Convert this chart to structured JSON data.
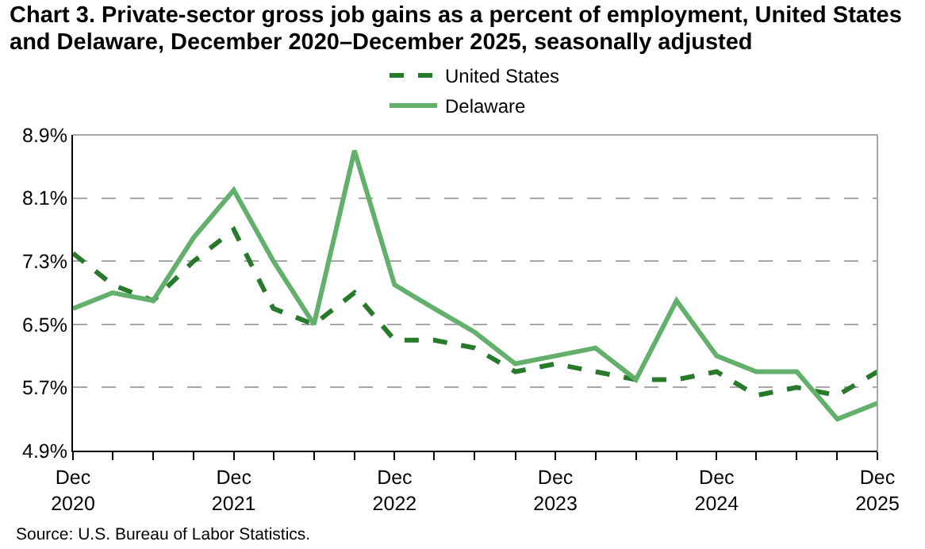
{
  "chart_data": {
    "type": "line",
    "title": "Chart 3. Private-sector gross job gains as a percent of employment, United States and Delaware, December 2020–December 2025, seasonally adjusted",
    "x": [
      "2020-12",
      "2021-03",
      "2021-06",
      "2021-09",
      "2021-12",
      "2022-03",
      "2022-06",
      "2022-09",
      "2022-12",
      "2023-03",
      "2023-06",
      "2023-09",
      "2023-12",
      "2024-03",
      "2024-06",
      "2024-09",
      "2024-12",
      "2025-03",
      "2025-06",
      "2025-09",
      "2025-12"
    ],
    "series": [
      {
        "name": "United States",
        "color": "#267a2a",
        "line_style": "dashed",
        "values": [
          7.4,
          7.0,
          6.8,
          7.3,
          7.7,
          6.7,
          6.5,
          6.9,
          6.3,
          6.3,
          6.2,
          5.9,
          6.0,
          5.9,
          5.8,
          5.8,
          5.9,
          5.6,
          5.7,
          5.6,
          5.9
        ]
      },
      {
        "name": "Delaware",
        "color": "#62b06c",
        "line_style": "solid",
        "values": [
          6.7,
          6.9,
          6.8,
          7.6,
          8.2,
          7.3,
          6.5,
          8.7,
          7.0,
          6.7,
          6.4,
          6.0,
          6.1,
          6.2,
          5.8,
          6.8,
          6.1,
          5.9,
          5.9,
          5.3,
          5.5
        ]
      }
    ],
    "xlim": [
      "2020-12",
      "2025-12"
    ],
    "xticks": [
      {
        "value": "2020-12",
        "label": "Dec\n2020"
      },
      {
        "value": "2021-03",
        "label": null
      },
      {
        "value": "2021-06",
        "label": null
      },
      {
        "value": "2021-09",
        "label": null
      },
      {
        "value": "2021-12",
        "label": "Dec\n2021"
      },
      {
        "value": "2022-03",
        "label": null
      },
      {
        "value": "2022-06",
        "label": null
      },
      {
        "value": "2022-09",
        "label": null
      },
      {
        "value": "2022-12",
        "label": "Dec\n2022"
      },
      {
        "value": "2023-03",
        "label": null
      },
      {
        "value": "2023-06",
        "label": null
      },
      {
        "value": "2023-09",
        "label": null
      },
      {
        "value": "2023-12",
        "label": "Dec\n2023"
      },
      {
        "value": "2024-03",
        "label": null
      },
      {
        "value": "2024-06",
        "label": null
      },
      {
        "value": "2024-09",
        "label": null
      },
      {
        "value": "2024-12",
        "label": "Dec\n2024"
      },
      {
        "value": "2025-03",
        "label": null
      },
      {
        "value": "2025-06",
        "label": null
      },
      {
        "value": "2025-09",
        "label": null
      },
      {
        "value": "2025-12",
        "label": "Dec\n2025"
      }
    ],
    "ylim": [
      4.9,
      8.9
    ],
    "yticks": [
      {
        "value": 4.9,
        "label": "4.9%"
      },
      {
        "value": 5.7,
        "label": "5.7%"
      },
      {
        "value": 6.5,
        "label": "6.5%"
      },
      {
        "value": 7.3,
        "label": "7.3%"
      },
      {
        "value": 8.1,
        "label": "8.1%"
      },
      {
        "value": 8.9,
        "label": "8.9%"
      }
    ],
    "grid": "y",
    "legend": "top",
    "marker": "none",
    "annotations": [
      "Source: U.S. Bureau of Labor Statistics."
    ]
  }
}
